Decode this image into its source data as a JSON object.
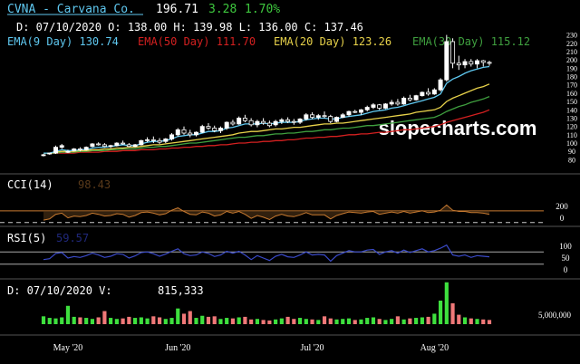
{
  "header": {
    "symbol_label": "CVNA - Carvana Co.",
    "last_price": "196.71",
    "change": "3.28",
    "change_pct": "1.70%",
    "ohlc_line": "D: 07/10/2020 O: 138.00 H: 139.98 L: 136.00 C: 137.46",
    "ema9_label": "EMA(9 Day) 130.74",
    "ema50_label": "EMA(50 Day) 111.70",
    "ema20_label": "EMA(20 Day) 123.26",
    "ema30_label": "EMA(30 Day) 115.12"
  },
  "watermark": "slopecharts.com",
  "cci_panel": {
    "label": "CCI(14)",
    "value": "98.43",
    "ticks": [
      "200",
      "0"
    ]
  },
  "rsi_panel": {
    "label": "RSI(5)",
    "value": "59.57",
    "ticks": [
      "100",
      "50",
      "0"
    ]
  },
  "volume_panel": {
    "label": "D: 07/10/2020 V:",
    "value": "815,333",
    "tick": "5,000,000"
  },
  "x_axis": {
    "labels": [
      "May '20",
      "Jun '20",
      "Jul '20",
      "Aug '20"
    ],
    "positions": [
      4,
      22,
      44,
      64
    ]
  },
  "colors": {
    "up": "#ffffff",
    "down": "#000000",
    "ema9": "#5fc8f0",
    "ema20": "#e8d24a",
    "ema30": "#3fa03f",
    "ema50": "#d42020",
    "cci": "#c87a30",
    "rsi": "#3a4ac8",
    "vol_up": "#3ee03e",
    "vol_down": "#f07878",
    "header_green": "#3ec83e",
    "symbol": "#5fc8f0"
  },
  "chart_data": {
    "type": "candlestick",
    "x_axis": "trading day index (0 = 2020-04-27)",
    "price_ylim": [
      75,
      235
    ],
    "price_ticks": [
      80,
      90,
      100,
      110,
      120,
      130,
      140,
      150,
      160,
      170,
      180,
      190,
      200,
      210,
      220,
      230
    ],
    "candles": [
      [
        86,
        87,
        84,
        86
      ],
      [
        87,
        88,
        86,
        88
      ],
      [
        88,
        97,
        87,
        95
      ],
      [
        95,
        99,
        93,
        97
      ],
      [
        90,
        92,
        88,
        90
      ],
      [
        91,
        94,
        90,
        93
      ],
      [
        93,
        95,
        90,
        92
      ],
      [
        92,
        96,
        91,
        95
      ],
      [
        96,
        100,
        95,
        99
      ],
      [
        99,
        101,
        97,
        98
      ],
      [
        98,
        100,
        95,
        96
      ],
      [
        96,
        98,
        94,
        97
      ],
      [
        97,
        101,
        96,
        100
      ],
      [
        100,
        103,
        98,
        99
      ],
      [
        98,
        100,
        95,
        96
      ],
      [
        96,
        99,
        95,
        98
      ],
      [
        98,
        104,
        97,
        103
      ],
      [
        103,
        107,
        101,
        104
      ],
      [
        104,
        108,
        100,
        103
      ],
      [
        103,
        106,
        99,
        101
      ],
      [
        102,
        106,
        100,
        105
      ],
      [
        105,
        112,
        103,
        110
      ],
      [
        110,
        118,
        108,
        116
      ],
      [
        116,
        120,
        110,
        112
      ],
      [
        112,
        116,
        107,
        110
      ],
      [
        110,
        114,
        108,
        113
      ],
      [
        113,
        122,
        112,
        120
      ],
      [
        120,
        124,
        116,
        118
      ],
      [
        118,
        121,
        113,
        115
      ],
      [
        115,
        120,
        112,
        118
      ],
      [
        118,
        126,
        116,
        125
      ],
      [
        125,
        128,
        121,
        123
      ],
      [
        123,
        132,
        122,
        130
      ],
      [
        130,
        134,
        125,
        127
      ],
      [
        127,
        130,
        120,
        122
      ],
      [
        122,
        128,
        119,
        126
      ],
      [
        126,
        130,
        122,
        124
      ],
      [
        124,
        127,
        119,
        121
      ],
      [
        122,
        128,
        120,
        126
      ],
      [
        126,
        130,
        123,
        128
      ],
      [
        128,
        131,
        124,
        126
      ],
      [
        126,
        129,
        122,
        125
      ],
      [
        125,
        130,
        123,
        129
      ],
      [
        129,
        136,
        127,
        134
      ],
      [
        134,
        137,
        129,
        131
      ],
      [
        131,
        135,
        128,
        133
      ],
      [
        133,
        138,
        130,
        132
      ],
      [
        132,
        134,
        124,
        126
      ],
      [
        126,
        132,
        125,
        131
      ],
      [
        131,
        136,
        130,
        134
      ],
      [
        134,
        139,
        132,
        138
      ],
      [
        138,
        140,
        136,
        137
      ],
      [
        137,
        141,
        134,
        140
      ],
      [
        140,
        145,
        138,
        143
      ],
      [
        143,
        148,
        141,
        146
      ],
      [
        146,
        147,
        140,
        142
      ],
      [
        142,
        148,
        141,
        147
      ],
      [
        147,
        152,
        145,
        149
      ],
      [
        149,
        153,
        145,
        147
      ],
      [
        147,
        156,
        146,
        154
      ],
      [
        154,
        158,
        150,
        152
      ],
      [
        152,
        158,
        151,
        157
      ],
      [
        157,
        162,
        156,
        161
      ],
      [
        161,
        166,
        157,
        159
      ],
      [
        159,
        166,
        158,
        164
      ],
      [
        164,
        178,
        162,
        176
      ],
      [
        176,
        230,
        174,
        222
      ],
      [
        222,
        226,
        190,
        196
      ],
      [
        196,
        205,
        188,
        194
      ],
      [
        194,
        201,
        190,
        198
      ],
      [
        198,
        201,
        192,
        195
      ],
      [
        195,
        201,
        190,
        199
      ],
      [
        199,
        200,
        192,
        197
      ],
      [
        197,
        199,
        193,
        196
      ]
    ],
    "ema9": [
      88,
      88,
      90,
      92,
      91,
      91,
      92,
      92,
      94,
      95,
      95,
      96,
      97,
      98,
      97,
      97,
      99,
      101,
      102,
      102,
      103,
      105,
      108,
      109,
      110,
      110,
      112,
      114,
      114,
      115,
      118,
      119,
      121,
      123,
      123,
      123,
      124,
      123,
      124,
      125,
      125,
      125,
      126,
      128,
      129,
      130,
      130,
      129,
      129,
      131,
      132,
      133,
      134,
      136,
      138,
      139,
      140,
      142,
      143,
      145,
      147,
      149,
      151,
      153,
      155,
      159,
      172,
      177,
      180,
      184,
      187,
      189,
      191,
      192
    ],
    "ema20": [
      88,
      88,
      89,
      90,
      90,
      90,
      91,
      91,
      92,
      92,
      93,
      93,
      94,
      94,
      95,
      95,
      96,
      97,
      98,
      98,
      99,
      100,
      101,
      102,
      103,
      104,
      105,
      106,
      107,
      108,
      109,
      110,
      112,
      113,
      114,
      114,
      115,
      116,
      117,
      117,
      118,
      119,
      119,
      120,
      121,
      122,
      123,
      123,
      124,
      124,
      125,
      126,
      127,
      128,
      129,
      130,
      131,
      132,
      133,
      134,
      135,
      137,
      138,
      139,
      140,
      143,
      150,
      154,
      157,
      160,
      163,
      166,
      168,
      171
    ],
    "ema30": [
      88,
      88,
      88,
      89,
      89,
      89,
      90,
      90,
      91,
      91,
      91,
      92,
      92,
      93,
      93,
      93,
      94,
      95,
      95,
      96,
      96,
      97,
      98,
      99,
      100,
      100,
      101,
      102,
      103,
      104,
      105,
      106,
      107,
      107,
      108,
      109,
      109,
      110,
      111,
      111,
      112,
      112,
      113,
      114,
      114,
      115,
      116,
      116,
      117,
      118,
      118,
      119,
      120,
      121,
      121,
      122,
      123,
      124,
      125,
      126,
      127,
      128,
      129,
      130,
      131,
      134,
      138,
      141,
      144,
      146,
      149,
      151,
      153,
      156
    ],
    "ema50": [
      88,
      88,
      88,
      88,
      88,
      88,
      89,
      89,
      89,
      89,
      90,
      90,
      90,
      91,
      91,
      91,
      92,
      92,
      92,
      93,
      93,
      94,
      94,
      95,
      95,
      96,
      96,
      97,
      97,
      98,
      98,
      99,
      100,
      100,
      101,
      101,
      102,
      102,
      103,
      103,
      104,
      104,
      105,
      106,
      106,
      107,
      107,
      108,
      108,
      109,
      110,
      110,
      111,
      111,
      112,
      113,
      113,
      114,
      115,
      116,
      116,
      117,
      118,
      119,
      120,
      122,
      125,
      127,
      129,
      131,
      133,
      135,
      137,
      140
    ],
    "cci_ylim": [
      -120,
      330
    ],
    "cci_guides": [
      100,
      -100
    ],
    "cci": [
      -60,
      -40,
      40,
      60,
      -20,
      10,
      0,
      20,
      60,
      40,
      10,
      20,
      50,
      40,
      -10,
      20,
      70,
      80,
      60,
      30,
      50,
      110,
      150,
      90,
      40,
      30,
      80,
      60,
      10,
      30,
      90,
      60,
      90,
      40,
      -30,
      20,
      -10,
      -50,
      10,
      40,
      10,
      0,
      30,
      70,
      30,
      30,
      30,
      -40,
      20,
      50,
      80,
      70,
      60,
      80,
      90,
      40,
      60,
      80,
      60,
      90,
      60,
      80,
      100,
      70,
      80,
      110,
      200,
      110,
      90,
      90,
      70,
      70,
      60,
      40
    ],
    "rsi_ylim": [
      0,
      100
    ],
    "rsi_guides": [
      70,
      30
    ],
    "rsi": [
      45,
      48,
      65,
      68,
      50,
      55,
      52,
      58,
      66,
      60,
      52,
      56,
      64,
      62,
      50,
      57,
      68,
      70,
      64,
      56,
      63,
      72,
      80,
      64,
      58,
      60,
      70,
      65,
      55,
      60,
      72,
      66,
      72,
      60,
      45,
      58,
      50,
      42,
      56,
      62,
      54,
      52,
      60,
      70,
      60,
      62,
      60,
      40,
      58,
      66,
      74,
      70,
      70,
      76,
      78,
      62,
      70,
      74,
      66,
      76,
      68,
      74,
      80,
      70,
      74,
      82,
      92,
      60,
      56,
      60,
      52,
      58,
      56,
      54
    ],
    "volume_ylim": [
      0,
      9000000
    ],
    "volume": [
      1500000,
      1200000,
      1100000,
      1300000,
      3500000,
      1400000,
      1300000,
      1200000,
      1000000,
      1300000,
      2500000,
      1200000,
      1000000,
      1100000,
      1400000,
      1200000,
      1300000,
      1100000,
      1500000,
      1300000,
      1000000,
      1200000,
      3000000,
      2000000,
      2500000,
      1200000,
      1600000,
      1400000,
      1500000,
      1000000,
      1200000,
      1100000,
      1300000,
      1400000,
      900000,
      1000000,
      800000,
      700000,
      900000,
      1100000,
      1400000,
      1000000,
      1200000,
      1000000,
      900000,
      800000,
      1500000,
      1100000,
      900000,
      1000000,
      1100000,
      800000,
      900000,
      1200000,
      1300000,
      1000000,
      800000,
      1000000,
      1500000,
      900000,
      1100000,
      1200000,
      1300000,
      1400000,
      2000000,
      4500000,
      8000000,
      4000000,
      1800000,
      1300000,
      1100000,
      1000000,
      900000,
      800000
    ]
  }
}
